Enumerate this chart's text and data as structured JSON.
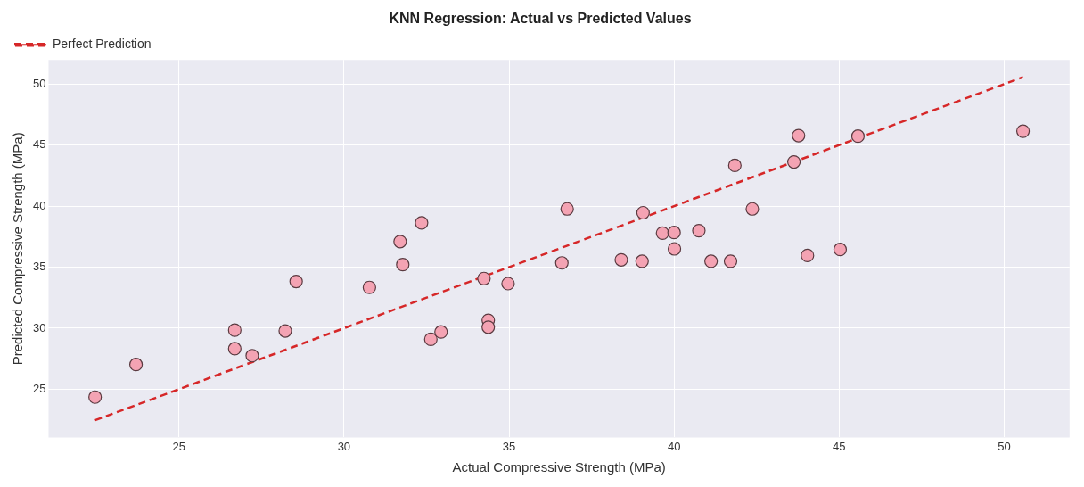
{
  "chart_data": {
    "type": "scatter",
    "title": "KNN Regression: Actual vs Predicted Values",
    "xlabel": "Actual Compressive Strength (MPa)",
    "ylabel": "Predicted Compressive Strength (MPa)",
    "xlim": [
      21.05,
      51.98
    ],
    "ylim": [
      21.05,
      51.98
    ],
    "xticks": [
      25,
      30,
      35,
      40,
      45,
      50
    ],
    "yticks": [
      25,
      30,
      35,
      40,
      45,
      50
    ],
    "grid": true,
    "legend": "top left",
    "series": [
      {
        "color": "#f4a3b3",
        "marker": "circle",
        "x": [
          22.46,
          23.7,
          26.69,
          26.69,
          27.22,
          28.22,
          28.55,
          30.77,
          31.7,
          31.78,
          32.35,
          32.63,
          32.94,
          34.24,
          34.37,
          34.37,
          34.97,
          36.76,
          36.6,
          39.06,
          38.4,
          39.03,
          39.65,
          40.0,
          40.75,
          40.01,
          41.12,
          41.71,
          41.84,
          42.37,
          43.77,
          43.63,
          44.04,
          45.03,
          45.57,
          50.57
        ],
        "values": [
          24.35,
          27.02,
          29.84,
          28.32,
          27.75,
          29.77,
          33.83,
          33.34,
          37.1,
          35.21,
          38.63,
          29.09,
          29.69,
          34.07,
          30.65,
          30.08,
          33.65,
          39.77,
          35.35,
          39.46,
          35.6,
          35.48,
          37.79,
          37.84,
          37.99,
          36.5,
          35.48,
          35.48,
          43.34,
          39.77,
          45.78,
          43.62,
          35.96,
          36.45,
          45.73,
          46.14
        ]
      },
      {
        "type": "line",
        "name": "Perfect Prediction",
        "color": "#d62728",
        "marker": "none",
        "line_style": "dashed",
        "x": [
          22.46,
          50.57
        ],
        "values": [
          22.46,
          50.57
        ]
      }
    ]
  }
}
